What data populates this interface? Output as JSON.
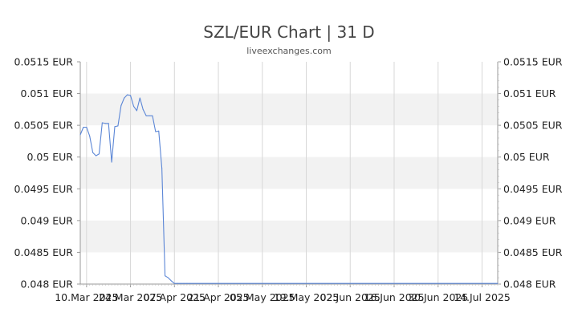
{
  "chart_data": {
    "type": "line",
    "title": "SZL/EUR Chart | 31 D",
    "subtitle": "liveexchanges.com",
    "xlabel": "",
    "ylabel": "",
    "ylim": [
      0.048,
      0.0515
    ],
    "y_ticks": [
      "0.0515 EUR",
      "0.051 EUR",
      "0.0505 EUR",
      "0.05 EUR",
      "0.0495 EUR",
      "0.049 EUR",
      "0.0485 EUR",
      "0.048 EUR"
    ],
    "y_tick_values": [
      0.0515,
      0.051,
      0.0505,
      0.05,
      0.0495,
      0.049,
      0.0485,
      0.048
    ],
    "x_start": "2025-03-08",
    "x_end": "2025-07-19",
    "x_ticks": [
      {
        "label": "10.Mar 2025",
        "date": "2025-03-10"
      },
      {
        "label": "24.Mar 2025",
        "date": "2025-03-24"
      },
      {
        "label": "07.Apr 2025",
        "date": "2025-04-07"
      },
      {
        "label": "21.Apr 2025",
        "date": "2025-04-21"
      },
      {
        "label": "05.May 2025",
        "date": "2025-05-05"
      },
      {
        "label": "19.May 2025",
        "date": "2025-05-19"
      },
      {
        "label": "02.Jun 2025",
        "date": "2025-06-02"
      },
      {
        "label": "16.Jun 2025",
        "date": "2025-06-16"
      },
      {
        "label": "30.Jun 2025",
        "date": "2025-06-30"
      },
      {
        "label": "14.Jul 2025",
        "date": "2025-07-14"
      }
    ],
    "grid": true,
    "line_color": "#5b86d6",
    "band_color": "#f2f2f2",
    "series": [
      {
        "x": [
          "2025-03-08",
          "2025-03-09",
          "2025-03-10",
          "2025-03-11",
          "2025-03-12",
          "2025-03-13",
          "2025-03-14",
          "2025-03-15",
          "2025-03-16",
          "2025-03-17",
          "2025-03-18",
          "2025-03-19",
          "2025-03-20",
          "2025-03-21",
          "2025-03-22",
          "2025-03-23",
          "2025-03-24",
          "2025-03-25",
          "2025-03-26",
          "2025-03-27",
          "2025-03-28",
          "2025-03-29",
          "2025-03-30",
          "2025-03-31",
          "2025-04-01",
          "2025-04-02",
          "2025-04-03",
          "2025-04-04",
          "2025-04-05",
          "2025-04-06",
          "2025-04-07",
          "2025-04-08",
          "2025-04-09",
          "2025-04-10",
          "2025-04-11",
          "2025-04-12",
          "2025-07-19"
        ],
        "values": [
          0.05035,
          0.05047,
          0.05047,
          0.05033,
          0.05007,
          0.05002,
          0.05005,
          0.05054,
          0.05053,
          0.05053,
          0.04992,
          0.05048,
          0.05049,
          0.05081,
          0.05093,
          0.05098,
          0.05097,
          0.0508,
          0.05073,
          0.05093,
          0.05075,
          0.05065,
          0.05065,
          0.05065,
          0.0504,
          0.05041,
          0.04982,
          0.04813,
          0.0481,
          0.04805,
          0.04801,
          0.04801,
          0.04801,
          0.04801,
          0.04801,
          0.04801,
          0.04801
        ]
      }
    ]
  }
}
